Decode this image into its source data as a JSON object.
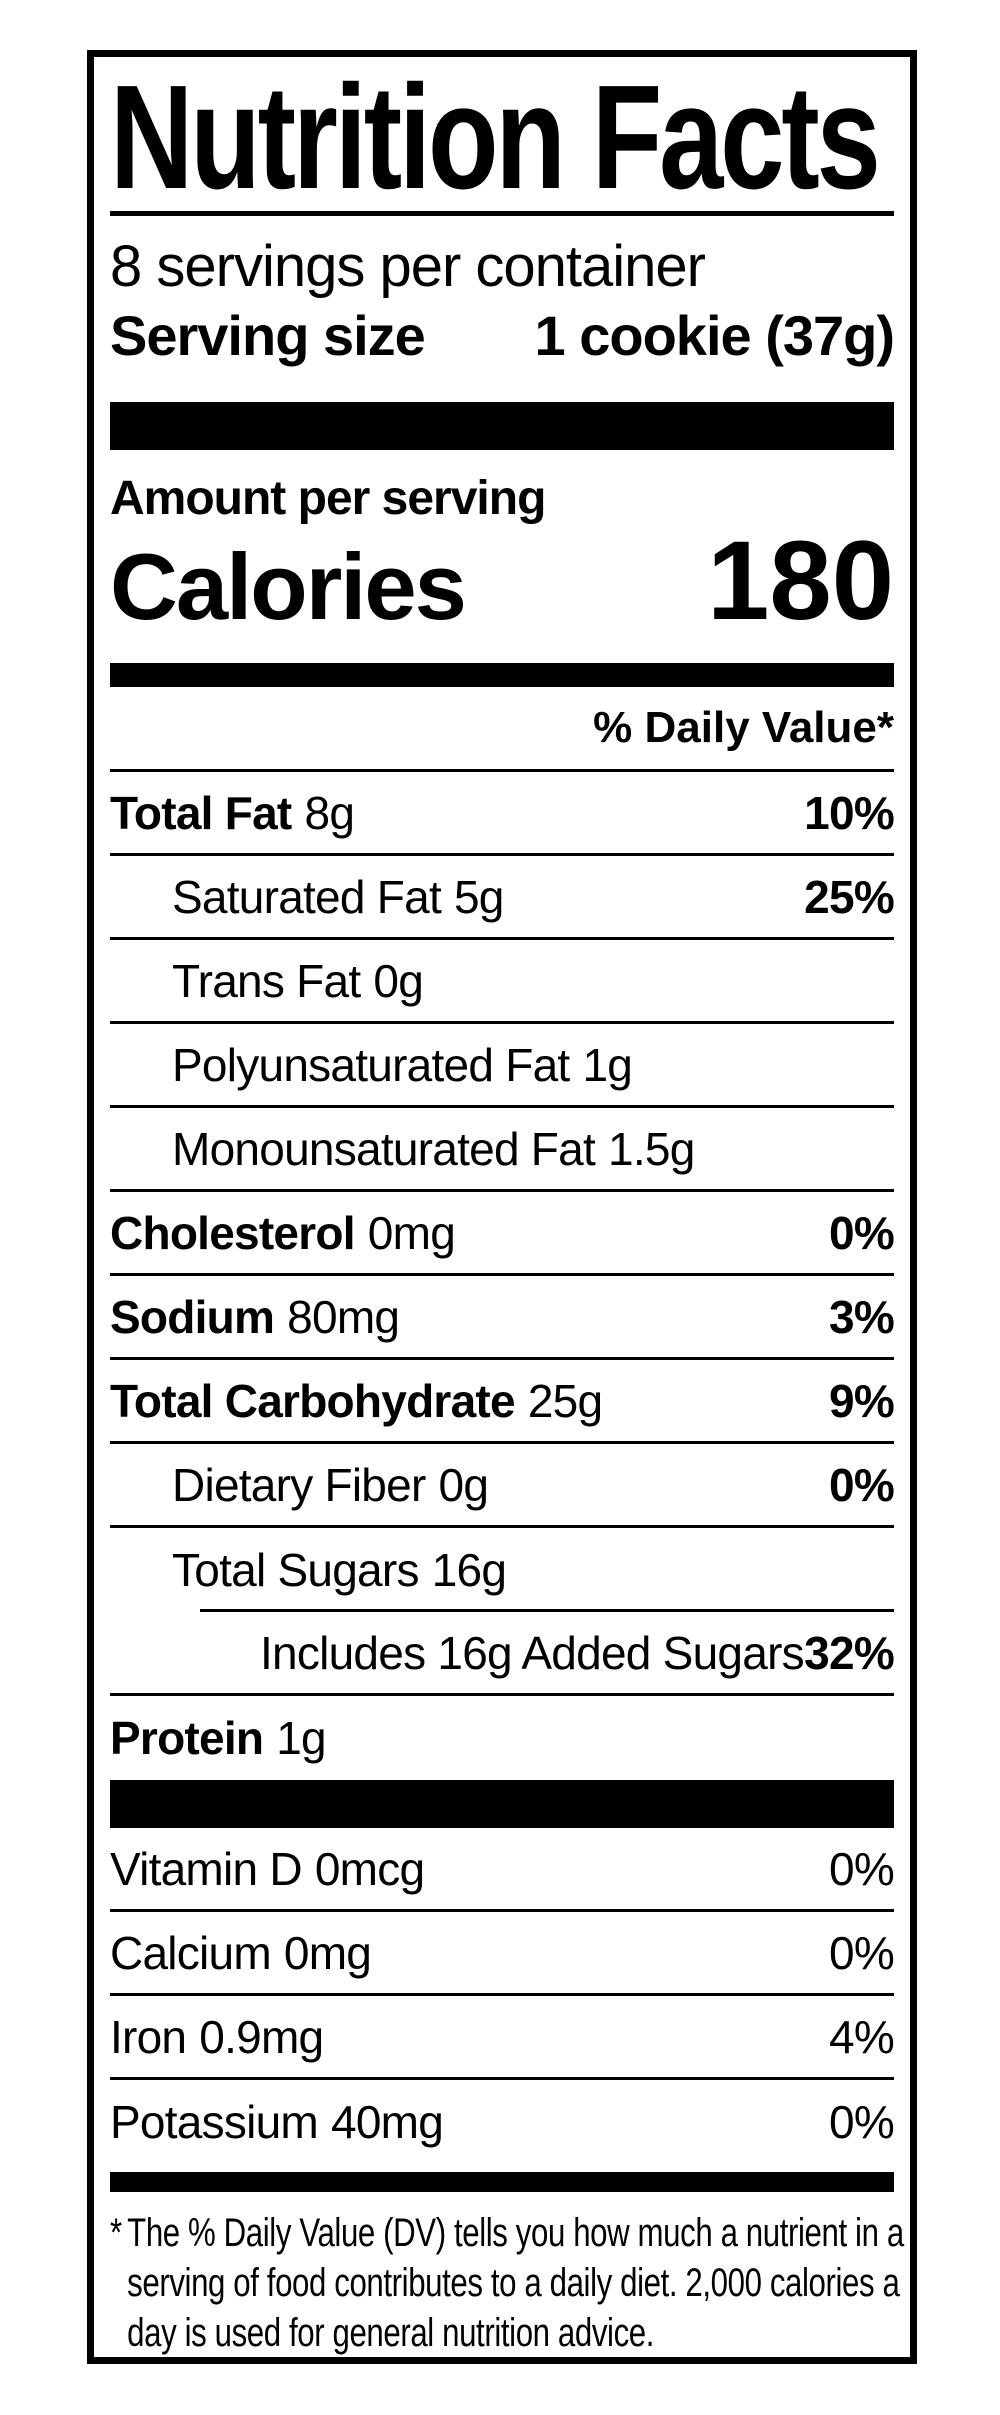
{
  "colors": {
    "ink": "#000000",
    "paper": "#ffffff"
  },
  "label": {
    "title": "Nutrition Facts",
    "servings_per_container": "8 servings per container",
    "serving_size": {
      "label": "Serving size",
      "value": "1 cookie (37g)"
    },
    "amount_per_serving": "Amount per serving",
    "calories": {
      "label": "Calories",
      "value": "180"
    },
    "daily_value_header": "% Daily Value*",
    "nutrients": [
      {
        "name": "Total Fat",
        "amount": "8g",
        "dv": "10%",
        "bold": true,
        "indent": 0
      },
      {
        "name": "Saturated Fat",
        "amount": "5g",
        "dv": "25%",
        "bold": false,
        "indent": 1
      },
      {
        "name": "Trans Fat",
        "amount": "0g",
        "dv": "",
        "bold": false,
        "indent": 1
      },
      {
        "name": "Polyunsaturated Fat",
        "amount": "1g",
        "dv": "",
        "bold": false,
        "indent": 1
      },
      {
        "name": "Monounsaturated Fat",
        "amount": "1.5g",
        "dv": "",
        "bold": false,
        "indent": 1
      },
      {
        "name": "Cholesterol",
        "amount": "0mg",
        "dv": "0%",
        "bold": true,
        "indent": 0
      },
      {
        "name": "Sodium",
        "amount": "80mg",
        "dv": "3%",
        "bold": true,
        "indent": 0
      },
      {
        "name": "Total Carbohydrate",
        "amount": "25g",
        "dv": "9%",
        "bold": true,
        "indent": 0
      },
      {
        "name": "Dietary Fiber",
        "amount": "0g",
        "dv": "0%",
        "bold": false,
        "indent": 1
      },
      {
        "name": "Total Sugars",
        "amount": "16g",
        "dv": "",
        "bold": false,
        "indent": 1,
        "sep": "indent"
      },
      {
        "name": "Includes 16g Added Sugars",
        "amount": "",
        "dv": "32%",
        "bold": false,
        "indent": 2
      },
      {
        "name": "Protein",
        "amount": "1g",
        "dv": "",
        "bold": true,
        "indent": 0,
        "sep": "none"
      }
    ],
    "micronutrients": [
      {
        "name": "Vitamin D",
        "amount": "0mcg",
        "dv": "0%"
      },
      {
        "name": "Calcium",
        "amount": "0mg",
        "dv": "0%"
      },
      {
        "name": "Iron",
        "amount": "0.9mg",
        "dv": "4%"
      },
      {
        "name": "Potassium",
        "amount": "40mg",
        "dv": "0%"
      }
    ],
    "footnote": {
      "star": "*",
      "lines": [
        "The % Daily Value (DV) tells you how much a nutrient in a",
        "serving of food contributes to a daily diet. 2,000 calories a",
        "day is used for general nutrition advice."
      ]
    }
  }
}
